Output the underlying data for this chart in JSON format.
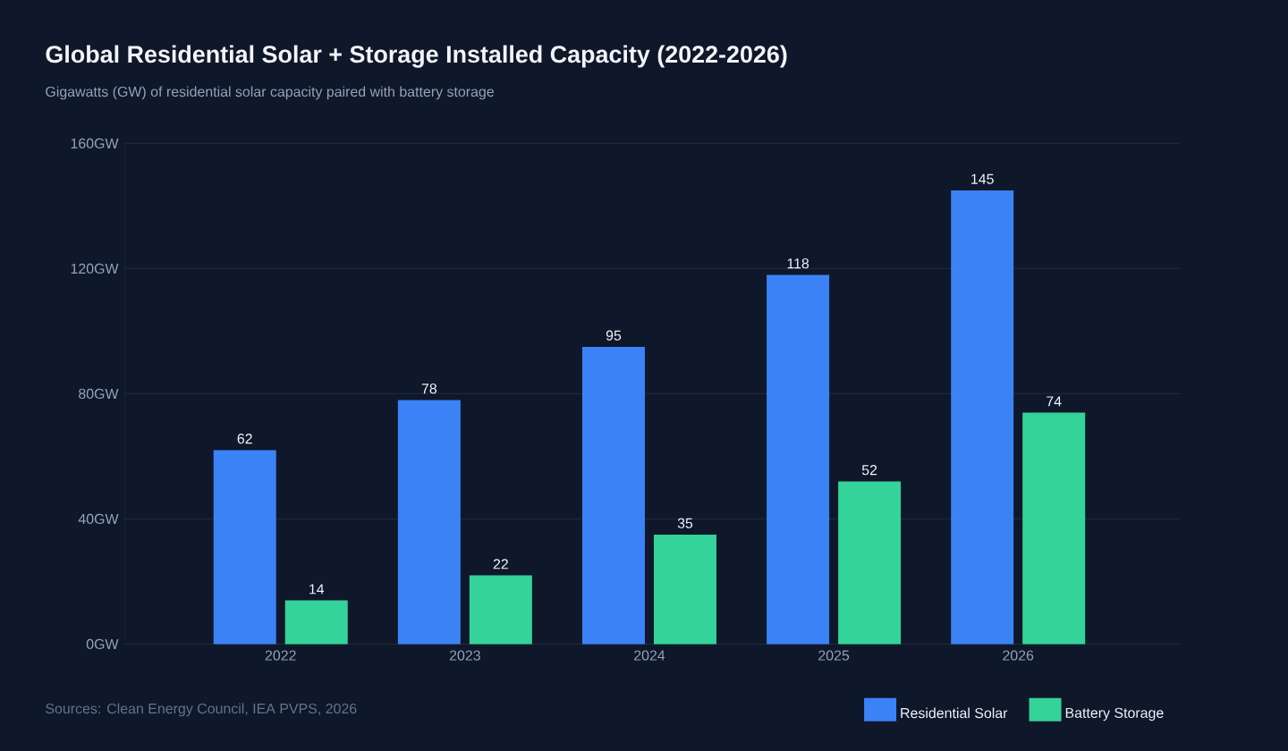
{
  "chart_data": {
    "type": "bar",
    "title": "Global Residential Solar + Storage Installed Capacity (2022-2026)",
    "subtitle": "Gigawatts (GW) of residential solar capacity paired with battery storage",
    "annotations": [
      "Sources: Clean Energy Council, IEA PVPS, 2026"
    ],
    "categories": [
      "2022",
      "2023",
      "2024",
      "2025",
      "2026"
    ],
    "series": [
      {
        "name": "Residential Solar",
        "color": "#3b82f6",
        "values": [
          62,
          78,
          95,
          118,
          145
        ]
      },
      {
        "name": "Battery Storage",
        "color": "#34d399",
        "values": [
          14,
          22,
          35,
          52,
          74
        ]
      }
    ],
    "ylim": [
      0,
      160
    ],
    "yticks": [
      {
        "value": 0,
        "label": "0GW"
      },
      {
        "value": 40,
        "label": "40GW"
      },
      {
        "value": 80,
        "label": "80GW"
      },
      {
        "value": 120,
        "label": "120GW"
      },
      {
        "value": 160,
        "label": "160GW"
      }
    ],
    "grid": "y",
    "legend": "bottom right",
    "data_labels": true
  }
}
